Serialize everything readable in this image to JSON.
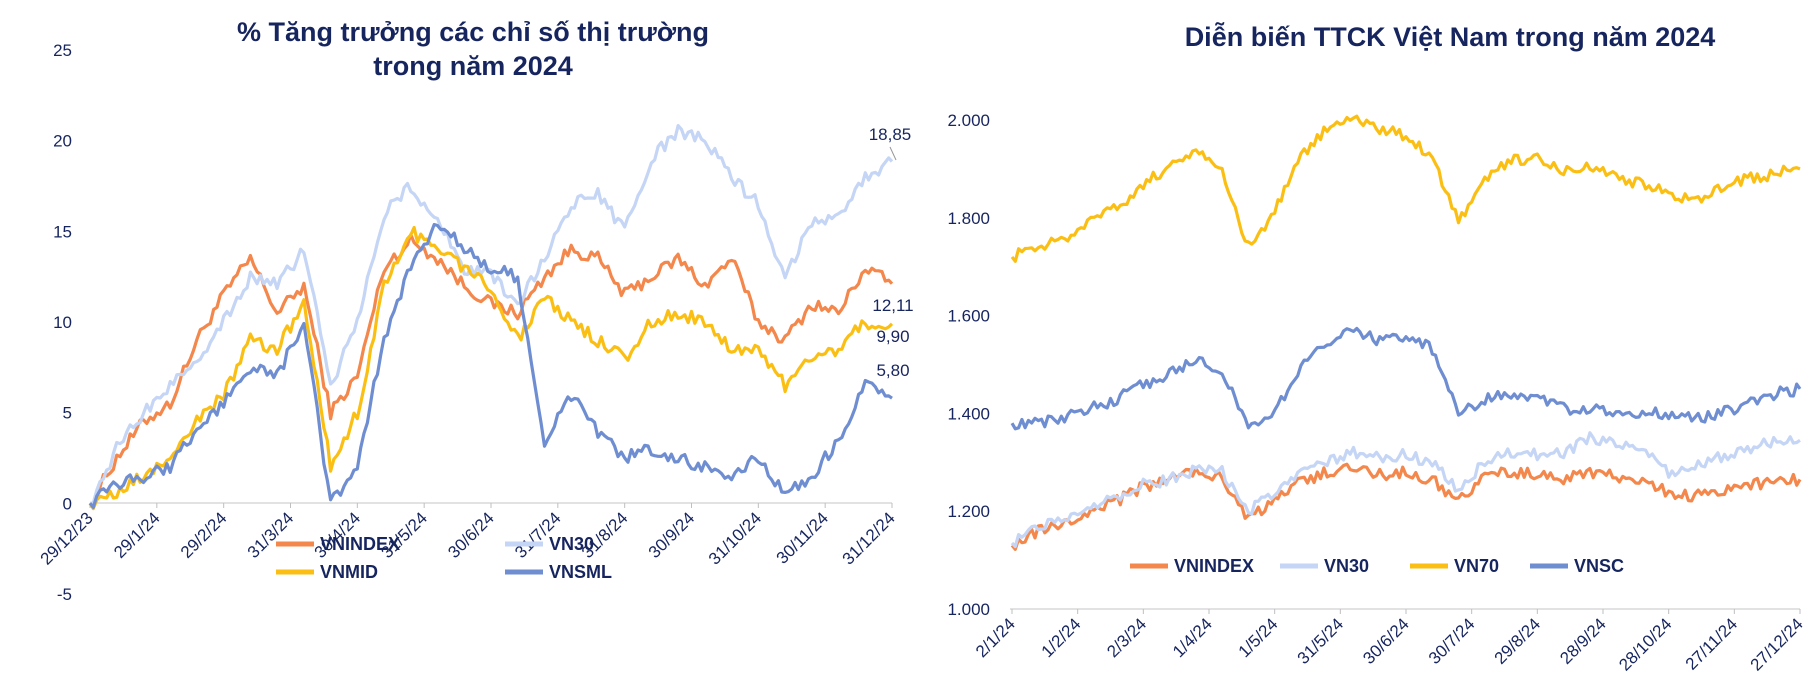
{
  "chart_data": [
    {
      "type": "line",
      "title": "% Tăng trưởng các chỉ số thị trường trong năm 2024",
      "title_lines": [
        "% Tăng trưởng các chỉ số thị trường",
        "trong năm 2024"
      ],
      "ylim": [
        -5,
        25
      ],
      "y_ticks": [
        "-5",
        "0",
        "5",
        "10",
        "15",
        "20",
        "25"
      ],
      "x_tick_labels": [
        "29/12/23",
        "29/1/24",
        "29/2/24",
        "31/3/24",
        "30/4/24",
        "31/5/24",
        "30/6/24",
        "31/7/24",
        "31/8/24",
        "30/9/24",
        "31/10/24",
        "30/11/24",
        "31/12/24"
      ],
      "grid": false,
      "legend_position": "bottom",
      "series": [
        {
          "name": "VNINDEX",
          "color": "#f4874b",
          "end_label": "12,11",
          "values": [
            0,
            2.5,
            4.5,
            5.5,
            9,
            11.5,
            13.5,
            10.5,
            12,
            5,
            7,
            13,
            14.5,
            13.5,
            12,
            11,
            10.5,
            12.5,
            14,
            13.5,
            11.5,
            12.5,
            13.5,
            12,
            13.5,
            10,
            9,
            11,
            10.5,
            13,
            12.11
          ]
        },
        {
          "name": "VN30",
          "color": "#c5d5f5",
          "end_label": "18,85",
          "values": [
            0,
            3,
            5,
            6.5,
            8,
            10,
            12.5,
            12,
            14,
            6.5,
            10,
            16,
            17.5,
            15.5,
            13,
            12.5,
            11,
            13.5,
            16.5,
            17,
            15,
            19,
            20.5,
            20,
            18,
            16.5,
            12.5,
            15.5,
            16,
            18,
            18.85
          ]
        },
        {
          "name": "VNMID",
          "color": "#fbbf14",
          "end_label": "9,90",
          "values": [
            0,
            0.5,
            1.5,
            2.5,
            4.5,
            6,
            9,
            8.5,
            11,
            2,
            5,
            12,
            15,
            14,
            13,
            12,
            9,
            11.5,
            10,
            9,
            8,
            10,
            10.5,
            10,
            8.5,
            8.5,
            6.5,
            8,
            8.5,
            10,
            9.9
          ]
        },
        {
          "name": "VNSML",
          "color": "#6f8ed2",
          "end_label": "5,80",
          "values": [
            0,
            1,
            1.5,
            2,
            4,
            5.5,
            7.5,
            7,
            10,
            0,
            2,
            9,
            13,
            15.5,
            14,
            13,
            12.5,
            3.5,
            6,
            4,
            2.5,
            3,
            2.5,
            2,
            1.5,
            2.5,
            0.5,
            1.5,
            3.5,
            6.5,
            5.8
          ]
        }
      ]
    },
    {
      "type": "line",
      "title": "Diễn biến TTCK Việt Nam trong năm 2024",
      "ylim": [
        1000,
        2000
      ],
      "y_ticks": [
        "1.000",
        "1.200",
        "1.400",
        "1.600",
        "1.800",
        "2.000"
      ],
      "x_tick_labels": [
        "2/1/24",
        "1/2/24",
        "2/3/24",
        "1/4/24",
        "1/5/24",
        "31/5/24",
        "30/6/24",
        "30/7/24",
        "29/8/24",
        "28/9/24",
        "28/10/24",
        "27/11/24",
        "27/12/24"
      ],
      "grid": false,
      "legend_position": "bottom",
      "series": [
        {
          "name": "VNINDEX",
          "color": "#f4874b",
          "values": [
            1130,
            1160,
            1175,
            1200,
            1220,
            1250,
            1265,
            1280,
            1270,
            1185,
            1220,
            1260,
            1280,
            1290,
            1275,
            1280,
            1265,
            1220,
            1270,
            1280,
            1275,
            1265,
            1280,
            1270,
            1260,
            1240,
            1230,
            1245,
            1255,
            1260,
            1265
          ]
        },
        {
          "name": "VN30",
          "color": "#c5d5f5",
          "values": [
            1135,
            1170,
            1180,
            1210,
            1225,
            1255,
            1265,
            1285,
            1280,
            1200,
            1240,
            1280,
            1300,
            1320,
            1310,
            1315,
            1300,
            1240,
            1300,
            1320,
            1315,
            1320,
            1350,
            1340,
            1320,
            1280,
            1290,
            1310,
            1330,
            1340,
            1345
          ]
        },
        {
          "name": "VN70",
          "color": "#fbbf14",
          "values": [
            1720,
            1740,
            1760,
            1790,
            1820,
            1870,
            1900,
            1940,
            1900,
            1740,
            1810,
            1930,
            1980,
            2000,
            1980,
            1970,
            1920,
            1790,
            1880,
            1920,
            1920,
            1900,
            1910,
            1880,
            1870,
            1850,
            1830,
            1860,
            1880,
            1890,
            1900
          ]
        },
        {
          "name": "VNSC",
          "color": "#6f8ed2",
          "values": [
            1380,
            1380,
            1390,
            1410,
            1430,
            1460,
            1480,
            1510,
            1490,
            1370,
            1400,
            1500,
            1540,
            1570,
            1550,
            1560,
            1530,
            1400,
            1430,
            1440,
            1430,
            1410,
            1410,
            1400,
            1400,
            1400,
            1390,
            1400,
            1420,
            1440,
            1450
          ]
        }
      ]
    }
  ]
}
